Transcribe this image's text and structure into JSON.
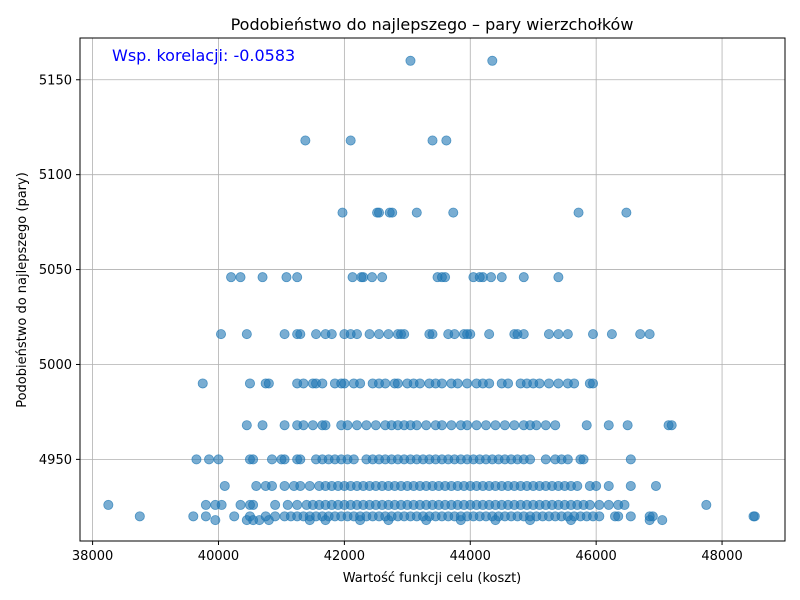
{
  "chart_data": {
    "type": "scatter",
    "title": "Podobieństwo do najlepszego – pary wierzchołków",
    "xlabel": "Wartość funkcji celu (koszt)",
    "ylabel": "Podobieństwo do najlepszego (pary)",
    "xlim": [
      37800,
      49000
    ],
    "ylim": [
      4907,
      5172
    ],
    "xticks": [
      38000,
      40000,
      42000,
      44000,
      46000,
      48000
    ],
    "yticks": [
      4950,
      5000,
      5050,
      5100,
      5150
    ],
    "xtick_labels": [
      "38000",
      "40000",
      "42000",
      "44000",
      "46000",
      "48000"
    ],
    "ytick_labels": [
      "4950",
      "5000",
      "5050",
      "5100",
      "5150"
    ],
    "grid": true,
    "point_color": "#1f77b4",
    "annotation": {
      "text": "Wsp. korelacji: -0.0583",
      "color": "#0000ff"
    },
    "points": [
      [
        43050,
        5160
      ],
      [
        44350,
        5160
      ],
      [
        41380,
        5118
      ],
      [
        42100,
        5118
      ],
      [
        43400,
        5118
      ],
      [
        43620,
        5118
      ],
      [
        41970,
        5080
      ],
      [
        42520,
        5080
      ],
      [
        42550,
        5080
      ],
      [
        42720,
        5080
      ],
      [
        42760,
        5080
      ],
      [
        43150,
        5080
      ],
      [
        43730,
        5080
      ],
      [
        45720,
        5080
      ],
      [
        46480,
        5080
      ],
      [
        40200,
        5046
      ],
      [
        40350,
        5046
      ],
      [
        40700,
        5046
      ],
      [
        41080,
        5046
      ],
      [
        41250,
        5046
      ],
      [
        42130,
        5046
      ],
      [
        42270,
        5046
      ],
      [
        42300,
        5046
      ],
      [
        42440,
        5046
      ],
      [
        42600,
        5046
      ],
      [
        43480,
        5046
      ],
      [
        43550,
        5046
      ],
      [
        43600,
        5046
      ],
      [
        44050,
        5046
      ],
      [
        44150,
        5046
      ],
      [
        44200,
        5046
      ],
      [
        44330,
        5046
      ],
      [
        44500,
        5046
      ],
      [
        44850,
        5046
      ],
      [
        45400,
        5046
      ],
      [
        40040,
        5016
      ],
      [
        40450,
        5016
      ],
      [
        41050,
        5016
      ],
      [
        41250,
        5016
      ],
      [
        41300,
        5016
      ],
      [
        41550,
        5016
      ],
      [
        41700,
        5016
      ],
      [
        41800,
        5016
      ],
      [
        42000,
        5016
      ],
      [
        42100,
        5016
      ],
      [
        42200,
        5016
      ],
      [
        42400,
        5016
      ],
      [
        42550,
        5016
      ],
      [
        42700,
        5016
      ],
      [
        42850,
        5016
      ],
      [
        42900,
        5016
      ],
      [
        42950,
        5016
      ],
      [
        43350,
        5016
      ],
      [
        43400,
        5016
      ],
      [
        43650,
        5016
      ],
      [
        43750,
        5016
      ],
      [
        43900,
        5016
      ],
      [
        43950,
        5016
      ],
      [
        44000,
        5016
      ],
      [
        44300,
        5016
      ],
      [
        44700,
        5016
      ],
      [
        44750,
        5016
      ],
      [
        44850,
        5016
      ],
      [
        45250,
        5016
      ],
      [
        45400,
        5016
      ],
      [
        45550,
        5016
      ],
      [
        45950,
        5016
      ],
      [
        46250,
        5016
      ],
      [
        46700,
        5016
      ],
      [
        46850,
        5016
      ],
      [
        39750,
        4990
      ],
      [
        40500,
        4990
      ],
      [
        40750,
        4990
      ],
      [
        40800,
        4990
      ],
      [
        41250,
        4990
      ],
      [
        41350,
        4990
      ],
      [
        41500,
        4990
      ],
      [
        41550,
        4990
      ],
      [
        41650,
        4990
      ],
      [
        41850,
        4990
      ],
      [
        41950,
        4990
      ],
      [
        42000,
        4990
      ],
      [
        42150,
        4990
      ],
      [
        42250,
        4990
      ],
      [
        42450,
        4990
      ],
      [
        42550,
        4990
      ],
      [
        42650,
        4990
      ],
      [
        42800,
        4990
      ],
      [
        42850,
        4990
      ],
      [
        43000,
        4990
      ],
      [
        43100,
        4990
      ],
      [
        43200,
        4990
      ],
      [
        43350,
        4990
      ],
      [
        43450,
        4990
      ],
      [
        43550,
        4990
      ],
      [
        43700,
        4990
      ],
      [
        43800,
        4990
      ],
      [
        43950,
        4990
      ],
      [
        44100,
        4990
      ],
      [
        44200,
        4990
      ],
      [
        44300,
        4990
      ],
      [
        44500,
        4990
      ],
      [
        44600,
        4990
      ],
      [
        44800,
        4990
      ],
      [
        44900,
        4990
      ],
      [
        45000,
        4990
      ],
      [
        45100,
        4990
      ],
      [
        45250,
        4990
      ],
      [
        45400,
        4990
      ],
      [
        45550,
        4990
      ],
      [
        45650,
        4990
      ],
      [
        45900,
        4990
      ],
      [
        45950,
        4990
      ],
      [
        40450,
        4968
      ],
      [
        40700,
        4968
      ],
      [
        41050,
        4968
      ],
      [
        41250,
        4968
      ],
      [
        41350,
        4968
      ],
      [
        41500,
        4968
      ],
      [
        41650,
        4968
      ],
      [
        41700,
        4968
      ],
      [
        41950,
        4968
      ],
      [
        42050,
        4968
      ],
      [
        42200,
        4968
      ],
      [
        42350,
        4968
      ],
      [
        42500,
        4968
      ],
      [
        42650,
        4968
      ],
      [
        42750,
        4968
      ],
      [
        42850,
        4968
      ],
      [
        42950,
        4968
      ],
      [
        43050,
        4968
      ],
      [
        43150,
        4968
      ],
      [
        43300,
        4968
      ],
      [
        43450,
        4968
      ],
      [
        43550,
        4968
      ],
      [
        43700,
        4968
      ],
      [
        43850,
        4968
      ],
      [
        43950,
        4968
      ],
      [
        44100,
        4968
      ],
      [
        44250,
        4968
      ],
      [
        44400,
        4968
      ],
      [
        44550,
        4968
      ],
      [
        44700,
        4968
      ],
      [
        44850,
        4968
      ],
      [
        44950,
        4968
      ],
      [
        45050,
        4968
      ],
      [
        45200,
        4968
      ],
      [
        45350,
        4968
      ],
      [
        45850,
        4968
      ],
      [
        46200,
        4968
      ],
      [
        46500,
        4968
      ],
      [
        47150,
        4968
      ],
      [
        47200,
        4968
      ],
      [
        39650,
        4950
      ],
      [
        39850,
        4950
      ],
      [
        40000,
        4950
      ],
      [
        40500,
        4950
      ],
      [
        40550,
        4950
      ],
      [
        40850,
        4950
      ],
      [
        41000,
        4950
      ],
      [
        41050,
        4950
      ],
      [
        41250,
        4950
      ],
      [
        41300,
        4950
      ],
      [
        41550,
        4950
      ],
      [
        41650,
        4950
      ],
      [
        41750,
        4950
      ],
      [
        41850,
        4950
      ],
      [
        41950,
        4950
      ],
      [
        42050,
        4950
      ],
      [
        42150,
        4950
      ],
      [
        42350,
        4950
      ],
      [
        42450,
        4950
      ],
      [
        42550,
        4950
      ],
      [
        42650,
        4950
      ],
      [
        42750,
        4950
      ],
      [
        42850,
        4950
      ],
      [
        42950,
        4950
      ],
      [
        43050,
        4950
      ],
      [
        43150,
        4950
      ],
      [
        43250,
        4950
      ],
      [
        43350,
        4950
      ],
      [
        43450,
        4950
      ],
      [
        43550,
        4950
      ],
      [
        43650,
        4950
      ],
      [
        43750,
        4950
      ],
      [
        43850,
        4950
      ],
      [
        43950,
        4950
      ],
      [
        44050,
        4950
      ],
      [
        44150,
        4950
      ],
      [
        44250,
        4950
      ],
      [
        44350,
        4950
      ],
      [
        44450,
        4950
      ],
      [
        44550,
        4950
      ],
      [
        44650,
        4950
      ],
      [
        44750,
        4950
      ],
      [
        44850,
        4950
      ],
      [
        44950,
        4950
      ],
      [
        45200,
        4950
      ],
      [
        45350,
        4950
      ],
      [
        45450,
        4950
      ],
      [
        45550,
        4950
      ],
      [
        45750,
        4950
      ],
      [
        45800,
        4950
      ],
      [
        46550,
        4950
      ],
      [
        40100,
        4936
      ],
      [
        40600,
        4936
      ],
      [
        40750,
        4936
      ],
      [
        40850,
        4936
      ],
      [
        41050,
        4936
      ],
      [
        41200,
        4936
      ],
      [
        41300,
        4936
      ],
      [
        41450,
        4936
      ],
      [
        41600,
        4936
      ],
      [
        41700,
        4936
      ],
      [
        41800,
        4936
      ],
      [
        41900,
        4936
      ],
      [
        42000,
        4936
      ],
      [
        42100,
        4936
      ],
      [
        42200,
        4936
      ],
      [
        42300,
        4936
      ],
      [
        42400,
        4936
      ],
      [
        42500,
        4936
      ],
      [
        42600,
        4936
      ],
      [
        42700,
        4936
      ],
      [
        42800,
        4936
      ],
      [
        42900,
        4936
      ],
      [
        43000,
        4936
      ],
      [
        43100,
        4936
      ],
      [
        43200,
        4936
      ],
      [
        43300,
        4936
      ],
      [
        43400,
        4936
      ],
      [
        43500,
        4936
      ],
      [
        43600,
        4936
      ],
      [
        43700,
        4936
      ],
      [
        43800,
        4936
      ],
      [
        43900,
        4936
      ],
      [
        44000,
        4936
      ],
      [
        44100,
        4936
      ],
      [
        44200,
        4936
      ],
      [
        44300,
        4936
      ],
      [
        44400,
        4936
      ],
      [
        44500,
        4936
      ],
      [
        44600,
        4936
      ],
      [
        44700,
        4936
      ],
      [
        44800,
        4936
      ],
      [
        44900,
        4936
      ],
      [
        45000,
        4936
      ],
      [
        45100,
        4936
      ],
      [
        45200,
        4936
      ],
      [
        45300,
        4936
      ],
      [
        45400,
        4936
      ],
      [
        45500,
        4936
      ],
      [
        45600,
        4936
      ],
      [
        45700,
        4936
      ],
      [
        45900,
        4936
      ],
      [
        46000,
        4936
      ],
      [
        46200,
        4936
      ],
      [
        46550,
        4936
      ],
      [
        46950,
        4936
      ],
      [
        38250,
        4926
      ],
      [
        39800,
        4926
      ],
      [
        39950,
        4926
      ],
      [
        40050,
        4926
      ],
      [
        40350,
        4926
      ],
      [
        40500,
        4926
      ],
      [
        40550,
        4926
      ],
      [
        40900,
        4926
      ],
      [
        41100,
        4926
      ],
      [
        41250,
        4926
      ],
      [
        41400,
        4926
      ],
      [
        41500,
        4926
      ],
      [
        41600,
        4926
      ],
      [
        41700,
        4926
      ],
      [
        41800,
        4926
      ],
      [
        41900,
        4926
      ],
      [
        42000,
        4926
      ],
      [
        42100,
        4926
      ],
      [
        42200,
        4926
      ],
      [
        42300,
        4926
      ],
      [
        42400,
        4926
      ],
      [
        42500,
        4926
      ],
      [
        42600,
        4926
      ],
      [
        42700,
        4926
      ],
      [
        42800,
        4926
      ],
      [
        42900,
        4926
      ],
      [
        43000,
        4926
      ],
      [
        43100,
        4926
      ],
      [
        43200,
        4926
      ],
      [
        43300,
        4926
      ],
      [
        43400,
        4926
      ],
      [
        43500,
        4926
      ],
      [
        43600,
        4926
      ],
      [
        43700,
        4926
      ],
      [
        43800,
        4926
      ],
      [
        43900,
        4926
      ],
      [
        44000,
        4926
      ],
      [
        44100,
        4926
      ],
      [
        44200,
        4926
      ],
      [
        44300,
        4926
      ],
      [
        44400,
        4926
      ],
      [
        44500,
        4926
      ],
      [
        44600,
        4926
      ],
      [
        44700,
        4926
      ],
      [
        44800,
        4926
      ],
      [
        44900,
        4926
      ],
      [
        45000,
        4926
      ],
      [
        45100,
        4926
      ],
      [
        45200,
        4926
      ],
      [
        45300,
        4926
      ],
      [
        45400,
        4926
      ],
      [
        45500,
        4926
      ],
      [
        45600,
        4926
      ],
      [
        45700,
        4926
      ],
      [
        45800,
        4926
      ],
      [
        45900,
        4926
      ],
      [
        46050,
        4926
      ],
      [
        46200,
        4926
      ],
      [
        46350,
        4926
      ],
      [
        46450,
        4926
      ],
      [
        47750,
        4926
      ],
      [
        38750,
        4920
      ],
      [
        39600,
        4920
      ],
      [
        39800,
        4920
      ],
      [
        40250,
        4920
      ],
      [
        40500,
        4920
      ],
      [
        40750,
        4920
      ],
      [
        40900,
        4920
      ],
      [
        41050,
        4920
      ],
      [
        41150,
        4920
      ],
      [
        41250,
        4920
      ],
      [
        41350,
        4920
      ],
      [
        41450,
        4920
      ],
      [
        41550,
        4920
      ],
      [
        41650,
        4920
      ],
      [
        41750,
        4920
      ],
      [
        41850,
        4920
      ],
      [
        41950,
        4920
      ],
      [
        42050,
        4920
      ],
      [
        42150,
        4920
      ],
      [
        42250,
        4920
      ],
      [
        42350,
        4920
      ],
      [
        42450,
        4920
      ],
      [
        42550,
        4920
      ],
      [
        42650,
        4920
      ],
      [
        42750,
        4920
      ],
      [
        42850,
        4920
      ],
      [
        42950,
        4920
      ],
      [
        43050,
        4920
      ],
      [
        43150,
        4920
      ],
      [
        43250,
        4920
      ],
      [
        43350,
        4920
      ],
      [
        43450,
        4920
      ],
      [
        43550,
        4920
      ],
      [
        43650,
        4920
      ],
      [
        43750,
        4920
      ],
      [
        43850,
        4920
      ],
      [
        43950,
        4920
      ],
      [
        44050,
        4920
      ],
      [
        44150,
        4920
      ],
      [
        44250,
        4920
      ],
      [
        44350,
        4920
      ],
      [
        44450,
        4920
      ],
      [
        44550,
        4920
      ],
      [
        44650,
        4920
      ],
      [
        44750,
        4920
      ],
      [
        44850,
        4920
      ],
      [
        44950,
        4920
      ],
      [
        45050,
        4920
      ],
      [
        45150,
        4920
      ],
      [
        45250,
        4920
      ],
      [
        45350,
        4920
      ],
      [
        45450,
        4920
      ],
      [
        45550,
        4920
      ],
      [
        45650,
        4920
      ],
      [
        45750,
        4920
      ],
      [
        45850,
        4920
      ],
      [
        45950,
        4920
      ],
      [
        46050,
        4920
      ],
      [
        46300,
        4920
      ],
      [
        46350,
        4920
      ],
      [
        46550,
        4920
      ],
      [
        46850,
        4920
      ],
      [
        46900,
        4920
      ],
      [
        48500,
        4920
      ],
      [
        48520,
        4920
      ],
      [
        39950,
        4918
      ],
      [
        40450,
        4918
      ],
      [
        40550,
        4918
      ],
      [
        40650,
        4918
      ],
      [
        40800,
        4918
      ],
      [
        41450,
        4918
      ],
      [
        41700,
        4918
      ],
      [
        42250,
        4918
      ],
      [
        42700,
        4918
      ],
      [
        43300,
        4918
      ],
      [
        43850,
        4918
      ],
      [
        44400,
        4918
      ],
      [
        44950,
        4918
      ],
      [
        45600,
        4918
      ],
      [
        46850,
        4918
      ],
      [
        47050,
        4918
      ]
    ]
  }
}
